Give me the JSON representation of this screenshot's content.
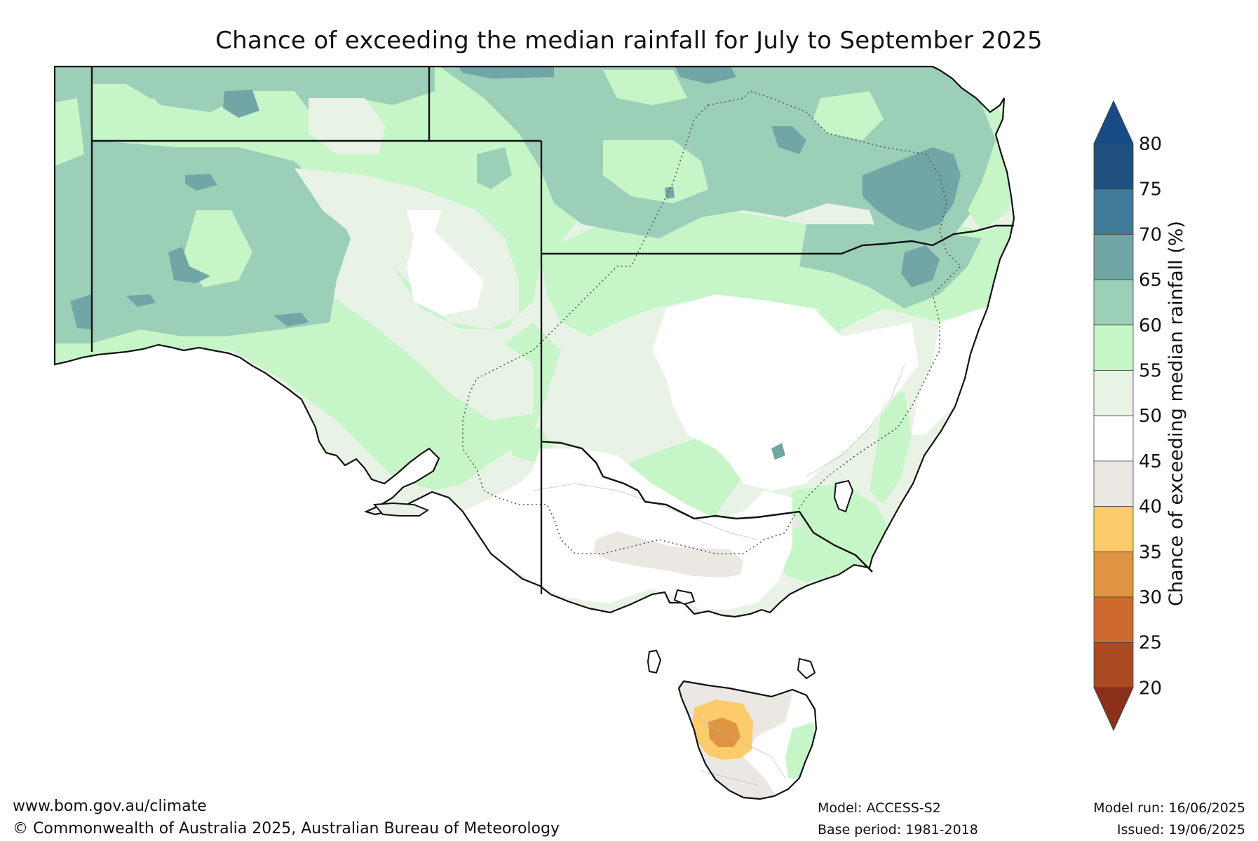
{
  "title": "Chance of exceeding the median rainfall for July to September 2025",
  "colorbar": {
    "label": "Chance of exceeding median rainfall (%)",
    "ticks": [
      "80",
      "75",
      "70",
      "65",
      "60",
      "55",
      "50",
      "45",
      "40",
      "35",
      "30",
      "25",
      "20"
    ],
    "bands": [
      {
        "range": "75-80",
        "color": "#1f4f7f"
      },
      {
        "range": "70-75",
        "color": "#3f7a98"
      },
      {
        "range": "65-70",
        "color": "#72a6a6"
      },
      {
        "range": "60-65",
        "color": "#9ccfb8"
      },
      {
        "range": "55-60",
        "color": "#c6f5c8"
      },
      {
        "range": "50-55",
        "color": "#e8f3e6"
      },
      {
        "range": "45-50",
        "color": "#ffffff"
      },
      {
        "range": "40-45",
        "color": "#ebe7e3"
      },
      {
        "range": "35-40",
        "color": "#fccb6a"
      },
      {
        "range": "30-35",
        "color": "#de9441"
      },
      {
        "range": "25-30",
        "color": "#cf6a2e"
      },
      {
        "range": "20-25",
        "color": "#a94a22"
      }
    ],
    "top_arrow_color": "#174b85",
    "bottom_arrow_color": "#8a301b"
  },
  "footer": {
    "website": "www.bom.gov.au/climate",
    "copyright": "© Commonwealth of Australia 2025, Australian Bureau of Meteorology",
    "model": "Model: ACCESS-S2",
    "base_period": "Base period: 1981-2018",
    "model_run": "Model run: 16/06/2025",
    "issued": "Issued: 19/06/2025"
  }
}
